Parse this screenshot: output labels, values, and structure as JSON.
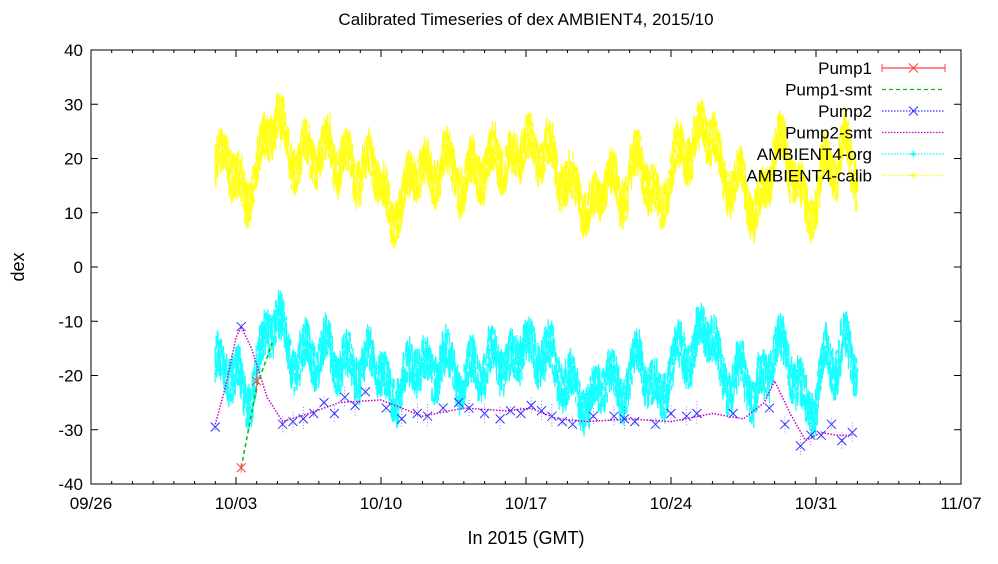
{
  "chart_data": {
    "type": "line",
    "title": "Calibrated Timeseries of dex AMBIENT4, 2015/10",
    "xlabel": "In 2015 (GMT)",
    "ylabel": "dex",
    "x_unit": "date",
    "xlim": [
      "2015-09-26",
      "2015-11-07"
    ],
    "ylim": [
      -40,
      40
    ],
    "x_ticks": [
      {
        "value": "2015-09-26",
        "label": "09/26"
      },
      {
        "value": "2015-10-03",
        "label": "10/03"
      },
      {
        "value": "2015-10-10",
        "label": "10/10"
      },
      {
        "value": "2015-10-17",
        "label": "10/17"
      },
      {
        "value": "2015-10-24",
        "label": "10/24"
      },
      {
        "value": "2015-10-31",
        "label": "10/31"
      },
      {
        "value": "2015-11-07",
        "label": "11/07"
      }
    ],
    "y_ticks": [
      -40,
      -30,
      -20,
      -10,
      0,
      10,
      20,
      30,
      40
    ],
    "grid": false,
    "legend_position": "top-right",
    "series": [
      {
        "name": "Pump1",
        "color": "#ff4040",
        "style": "errorbars-x-marker",
        "x": [
          "2015-10-03 06:00",
          "2015-10-04 00:00"
        ],
        "y": [
          -37,
          -21
        ]
      },
      {
        "name": "Pump1-smt",
        "color": "#00c000",
        "style": "dashed",
        "x": [
          "2015-10-03 06:00",
          "2015-10-04 00:00",
          "2015-10-04 18:00"
        ],
        "y": [
          -37,
          -22,
          -14
        ]
      },
      {
        "name": "Pump2",
        "color": "#3030ff",
        "style": "x-marker-dotted",
        "x": [
          "2015-10-02 00:00",
          "2015-10-03 06:00",
          "2015-10-05 06:00",
          "2015-10-05 18:00",
          "2015-10-06 06:00",
          "2015-10-06 18:00",
          "2015-10-07 06:00",
          "2015-10-07 18:00",
          "2015-10-08 06:00",
          "2015-10-08 18:00",
          "2015-10-09 06:00",
          "2015-10-10 06:00",
          "2015-10-11 00:00",
          "2015-10-11 18:00",
          "2015-10-12 06:00",
          "2015-10-13 00:00",
          "2015-10-13 18:00",
          "2015-10-14 06:00",
          "2015-10-15 00:00",
          "2015-10-15 18:00",
          "2015-10-16 06:00",
          "2015-10-16 18:00",
          "2015-10-17 06:00",
          "2015-10-17 18:00",
          "2015-10-18 06:00",
          "2015-10-18 18:00",
          "2015-10-19 06:00",
          "2015-10-20 06:00",
          "2015-10-21 06:00",
          "2015-10-21 18:00",
          "2015-10-22 06:00",
          "2015-10-23 06:00",
          "2015-10-24 00:00",
          "2015-10-24 18:00",
          "2015-10-25 06:00",
          "2015-10-27 00:00",
          "2015-10-28 18:00",
          "2015-10-29 12:00",
          "2015-10-30 06:00",
          "2015-10-30 18:00",
          "2015-10-31 06:00",
          "2015-10-31 18:00",
          "2015-11-01 06:00",
          "2015-11-01 18:00"
        ],
        "y": [
          -29.5,
          -11,
          -29,
          -28.5,
          -28,
          -27,
          -25,
          -27,
          -24,
          -25.5,
          -23,
          -26,
          -28,
          -27,
          -27.5,
          -26,
          -25,
          -26,
          -27,
          -28,
          -26.5,
          -27,
          -25.5,
          -26.5,
          -27.5,
          -28.5,
          -29,
          -27.5,
          -27.5,
          -28,
          -28.5,
          -29,
          -27,
          -27.5,
          -27,
          -27,
          -26,
          -29,
          -33,
          -31,
          -31,
          -29,
          -32,
          -30.5
        ]
      },
      {
        "name": "Pump2-smt",
        "color": "#cc00cc",
        "style": "dotted",
        "x": [
          "2015-10-02 00:00",
          "2015-10-02 12:00",
          "2015-10-03 00:00",
          "2015-10-03 06:00",
          "2015-10-03 18:00",
          "2015-10-04 12:00",
          "2015-10-05 06:00",
          "2015-10-06 12:00",
          "2015-10-08 00:00",
          "2015-10-10 00:00",
          "2015-10-12 00:00",
          "2015-10-14 00:00",
          "2015-10-16 00:00",
          "2015-10-17 06:00",
          "2015-10-18 12:00",
          "2015-10-20 00:00",
          "2015-10-22 00:00",
          "2015-10-24 00:00",
          "2015-10-26 00:00",
          "2015-10-27 12:00",
          "2015-10-28 12:00",
          "2015-10-29 00:00",
          "2015-10-29 18:00",
          "2015-10-30 12:00",
          "2015-10-31 06:00",
          "2015-11-01 00:00",
          "2015-11-01 18:00"
        ],
        "y": [
          -29,
          -22,
          -13,
          -11,
          -15,
          -24,
          -28.5,
          -27,
          -25,
          -24.5,
          -27.5,
          -26,
          -26.5,
          -26,
          -28,
          -28.5,
          -28,
          -28.5,
          -27,
          -28,
          -25,
          -21,
          -27,
          -32,
          -30.5,
          -31,
          -31
        ]
      },
      {
        "name": "AMBIENT4-org",
        "color": "#00ffff",
        "style": "dense-points",
        "x": [
          "2015-10-02 00:00",
          "2015-10-02 12:00",
          "2015-10-03 00:00",
          "2015-10-03 12:00",
          "2015-10-04 00:00",
          "2015-10-04 12:00",
          "2015-10-05 00:00",
          "2015-10-05 12:00",
          "2015-10-06 00:00",
          "2015-10-06 12:00",
          "2015-10-07 00:00",
          "2015-10-07 12:00",
          "2015-10-08 00:00",
          "2015-10-08 12:00",
          "2015-10-09 00:00",
          "2015-10-09 12:00",
          "2015-10-10 00:00",
          "2015-10-10 12:00",
          "2015-10-11 00:00",
          "2015-10-11 12:00",
          "2015-10-12 00:00",
          "2015-10-12 12:00",
          "2015-10-13 00:00",
          "2015-10-13 12:00",
          "2015-10-14 00:00",
          "2015-10-14 12:00",
          "2015-10-15 00:00",
          "2015-10-15 12:00",
          "2015-10-16 00:00",
          "2015-10-16 12:00",
          "2015-10-17 00:00",
          "2015-10-17 12:00",
          "2015-10-18 00:00",
          "2015-10-18 12:00",
          "2015-10-19 00:00",
          "2015-10-19 12:00",
          "2015-10-20 00:00",
          "2015-10-20 12:00",
          "2015-10-21 00:00",
          "2015-10-21 12:00",
          "2015-10-22 00:00",
          "2015-10-22 12:00",
          "2015-10-23 00:00",
          "2015-10-23 12:00",
          "2015-10-24 00:00",
          "2015-10-24 12:00",
          "2015-10-25 00:00",
          "2015-10-25 12:00",
          "2015-10-26 00:00",
          "2015-10-26 12:00",
          "2015-10-27 00:00",
          "2015-10-27 12:00",
          "2015-10-28 00:00",
          "2015-10-28 12:00",
          "2015-10-29 00:00",
          "2015-10-29 12:00",
          "2015-10-30 00:00",
          "2015-10-30 12:00",
          "2015-10-31 00:00",
          "2015-10-31 12:00",
          "2015-11-01 00:00",
          "2015-11-01 12:00",
          "2015-11-02 00:00"
        ],
        "y": [
          -17,
          -20,
          -18,
          -26,
          -19,
          -12,
          -9,
          -15,
          -19,
          -14,
          -18,
          -13,
          -20,
          -16,
          -21,
          -15,
          -20,
          -24,
          -22,
          -18,
          -17,
          -21,
          -16,
          -19,
          -22,
          -17,
          -20,
          -15,
          -19,
          -17,
          -13,
          -18,
          -14,
          -20,
          -21,
          -23,
          -26,
          -22,
          -19,
          -24,
          -20,
          -16,
          -22,
          -24,
          -19,
          -14,
          -18,
          -10,
          -13,
          -20,
          -22,
          -18,
          -25,
          -20,
          -16,
          -14,
          -22,
          -24,
          -26,
          -14,
          -20,
          -12,
          -21
        ]
      },
      {
        "name": "AMBIENT4-calib",
        "color": "#ffff00",
        "style": "dense-points",
        "x": [
          "2015-10-02 00:00",
          "2015-10-02 12:00",
          "2015-10-03 00:00",
          "2015-10-03 12:00",
          "2015-10-04 00:00",
          "2015-10-04 12:00",
          "2015-10-05 00:00",
          "2015-10-05 12:00",
          "2015-10-06 00:00",
          "2015-10-06 12:00",
          "2015-10-07 00:00",
          "2015-10-07 12:00",
          "2015-10-08 00:00",
          "2015-10-08 12:00",
          "2015-10-09 00:00",
          "2015-10-09 12:00",
          "2015-10-10 00:00",
          "2015-10-10 12:00",
          "2015-10-11 00:00",
          "2015-10-11 12:00",
          "2015-10-12 00:00",
          "2015-10-12 12:00",
          "2015-10-13 00:00",
          "2015-10-13 12:00",
          "2015-10-14 00:00",
          "2015-10-14 12:00",
          "2015-10-15 00:00",
          "2015-10-15 12:00",
          "2015-10-16 00:00",
          "2015-10-16 12:00",
          "2015-10-17 00:00",
          "2015-10-17 12:00",
          "2015-10-18 00:00",
          "2015-10-18 12:00",
          "2015-10-19 00:00",
          "2015-10-19 12:00",
          "2015-10-20 00:00",
          "2015-10-20 12:00",
          "2015-10-21 00:00",
          "2015-10-21 12:00",
          "2015-10-22 00:00",
          "2015-10-22 12:00",
          "2015-10-23 00:00",
          "2015-10-23 12:00",
          "2015-10-24 00:00",
          "2015-10-24 12:00",
          "2015-10-25 00:00",
          "2015-10-25 12:00",
          "2015-10-26 00:00",
          "2015-10-26 12:00",
          "2015-10-27 00:00",
          "2015-10-27 12:00",
          "2015-10-28 00:00",
          "2015-10-28 12:00",
          "2015-10-29 00:00",
          "2015-10-29 12:00",
          "2015-10-30 00:00",
          "2015-10-30 12:00",
          "2015-10-31 00:00",
          "2015-10-31 12:00",
          "2015-11-01 00:00",
          "2015-11-01 12:00",
          "2015-11-02 00:00"
        ],
        "y": [
          18,
          21,
          17,
          11,
          19,
          24,
          28,
          22,
          18,
          23,
          19,
          24,
          17,
          21,
          15,
          21,
          16,
          8,
          12,
          17,
          19,
          15,
          21,
          18,
          14,
          20,
          16,
          22,
          18,
          20,
          24,
          19,
          23,
          17,
          16,
          14,
          10,
          13,
          18,
          12,
          16,
          21,
          14,
          11,
          17,
          23,
          20,
          27,
          24,
          17,
          14,
          18,
          8,
          14,
          21,
          23,
          15,
          12,
          10,
          22,
          16,
          25,
          14
        ]
      }
    ]
  }
}
